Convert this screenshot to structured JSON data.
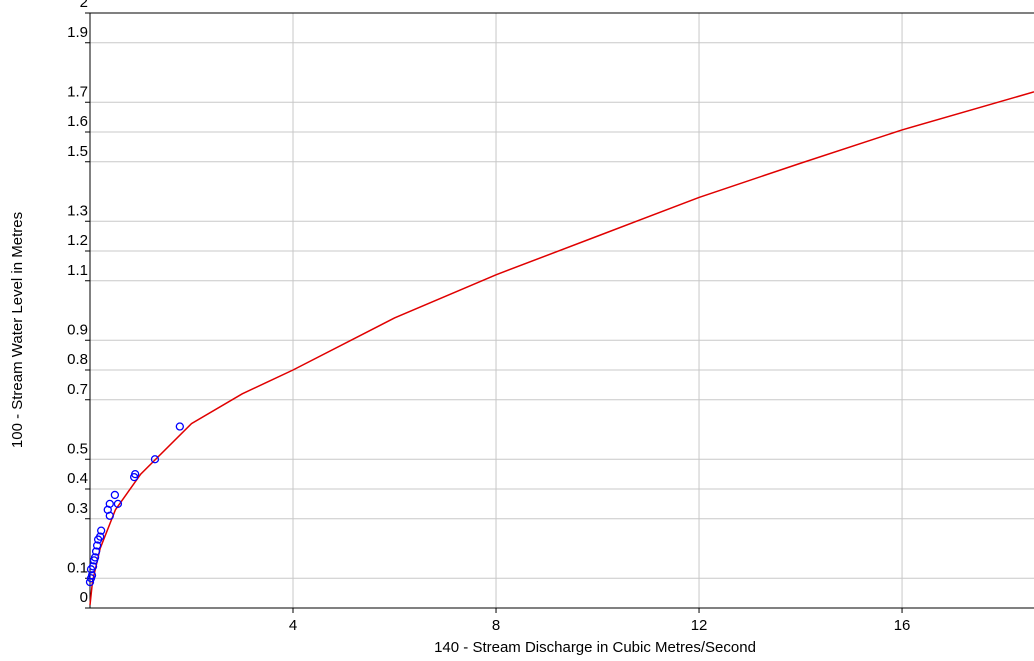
{
  "chart_data": {
    "type": "scatter",
    "xlabel": "140 - Stream Discharge in Cubic Metres/Second",
    "ylabel": "100 - Stream Water Level in Metres",
    "xlim": [
      0,
      18.6
    ],
    "ylim": [
      0,
      2
    ],
    "xticks": [
      4,
      8,
      12,
      16
    ],
    "yticks": [
      0,
      0.1,
      0.3,
      0.4,
      0.5,
      0.7,
      0.8,
      0.9,
      1.1,
      1.2,
      1.3,
      1.5,
      1.6,
      1.7,
      1.9,
      2
    ],
    "grid": true,
    "series": [
      {
        "kind": "points",
        "color": "#0000ff",
        "x": [
          0,
          0.02,
          0.04,
          0.02,
          0.06,
          0.08,
          0.1,
          0.12,
          0.14,
          0.16,
          0.2,
          0.22,
          0.35,
          0.39,
          0.39,
          0.49,
          0.55,
          0.87,
          0.89,
          1.28,
          1.77
        ],
        "values": [
          0.087,
          0.1,
          0.11,
          0.13,
          0.14,
          0.16,
          0.17,
          0.19,
          0.21,
          0.23,
          0.24,
          0.26,
          0.33,
          0.35,
          0.31,
          0.38,
          0.35,
          0.44,
          0.45,
          0.5,
          0.61
        ]
      },
      {
        "kind": "curve",
        "color": "#e00000",
        "x": [
          0,
          0.05,
          0.2,
          0.5,
          1,
          2,
          3,
          4,
          6,
          8,
          10,
          12,
          14,
          16,
          18.6
        ],
        "values": [
          0.01,
          0.09,
          0.2,
          0.33,
          0.45,
          0.62,
          0.72,
          0.8,
          0.975,
          1.12,
          1.25,
          1.38,
          1.495,
          1.607,
          1.735
        ]
      }
    ]
  }
}
